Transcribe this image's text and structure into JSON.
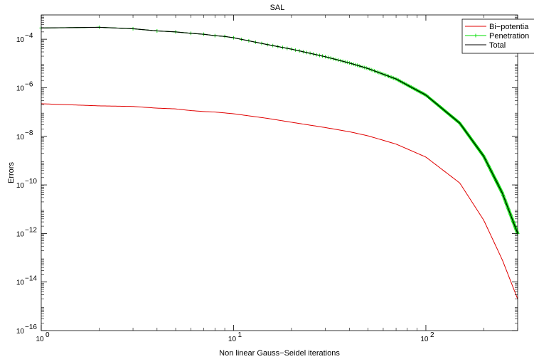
{
  "chart_data": {
    "type": "line",
    "title": "SAL",
    "xlabel": "Non linear Gauss−Seidel iterations",
    "ylabel": "Errors",
    "xscale": "log",
    "yscale": "log",
    "xlim": [
      1,
      300
    ],
    "ylim": [
      1e-16,
      0.001
    ],
    "grid": false,
    "legend_position": "top-right",
    "x_ticks": [
      {
        "value": 1,
        "base": "10",
        "exp": "0"
      },
      {
        "value": 10,
        "base": "10",
        "exp": "1"
      },
      {
        "value": 100,
        "base": "10",
        "exp": "2"
      }
    ],
    "y_ticks": [
      {
        "value": 1e-16,
        "base": "10",
        "exp": "−16"
      },
      {
        "value": 1e-14,
        "base": "10",
        "exp": "−14"
      },
      {
        "value": 1e-12,
        "base": "10",
        "exp": "−12"
      },
      {
        "value": 1e-10,
        "base": "10",
        "exp": "−10"
      },
      {
        "value": 1e-08,
        "base": "10",
        "exp": "−8"
      },
      {
        "value": 1e-06,
        "base": "10",
        "exp": "−6"
      },
      {
        "value": 0.0001,
        "base": "10",
        "exp": "−4"
      }
    ],
    "series": [
      {
        "name": "Bi−potential",
        "legend_label": "Bi−potentia",
        "color": "#e00000",
        "marker": "none",
        "x": [
          1,
          2,
          3,
          4,
          5,
          6,
          7,
          8,
          9,
          10,
          15,
          20,
          30,
          40,
          50,
          70,
          100,
          150,
          200,
          250,
          300
        ],
        "y": [
          2.2e-07,
          1.8e-07,
          1.7e-07,
          1.45e-07,
          1.35e-07,
          1.15e-07,
          1.05e-07,
          1e-07,
          9.2e-08,
          8.5e-08,
          5.5e-08,
          3.8e-08,
          2.3e-08,
          1.55e-08,
          1.05e-08,
          4.8e-09,
          1.4e-09,
          1.2e-10,
          3.5e-12,
          8e-14,
          2e-15
        ]
      },
      {
        "name": "Penetration",
        "legend_label": "Penetration",
        "color": "#00dd00",
        "marker": "+",
        "x": [
          1,
          2,
          3,
          4,
          5,
          6,
          7,
          8,
          9,
          10,
          15,
          20,
          30,
          40,
          50,
          70,
          100,
          150,
          200,
          250,
          300
        ],
        "y": [
          0.00029,
          0.00031,
          0.00027,
          0.00022,
          0.0002,
          0.000175,
          0.00016,
          0.00014,
          0.00013,
          0.000115,
          6e-05,
          3.9e-05,
          1.9e-05,
          1.05e-05,
          6.2e-06,
          2.3e-06,
          5e-07,
          3.5e-08,
          1.5e-09,
          4.5e-11,
          1e-12
        ]
      },
      {
        "name": "Total",
        "legend_label": "Total",
        "color": "#000000",
        "marker": "none",
        "x": [
          1,
          2,
          3,
          4,
          5,
          6,
          7,
          8,
          9,
          10,
          15,
          20,
          30,
          40,
          50,
          70,
          100,
          150,
          200,
          250,
          300
        ],
        "y": [
          0.00029,
          0.00031,
          0.00027,
          0.00022,
          0.0002,
          0.000175,
          0.00016,
          0.00014,
          0.00013,
          0.000115,
          6e-05,
          3.9e-05,
          1.9e-05,
          1.05e-05,
          6.2e-06,
          2.3e-06,
          5e-07,
          3.5e-08,
          1.5e-09,
          4.5e-11,
          1e-12
        ]
      }
    ]
  }
}
